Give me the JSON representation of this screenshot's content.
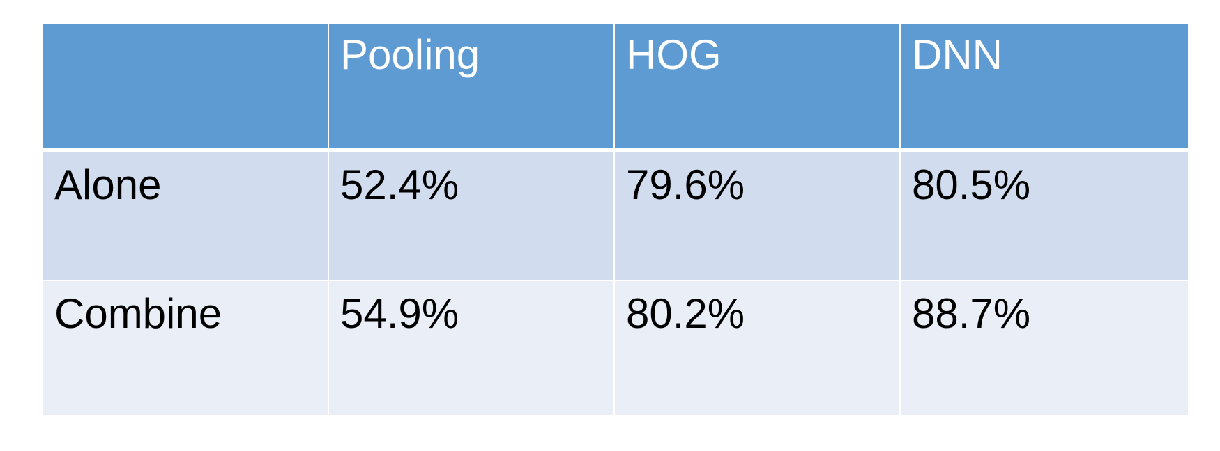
{
  "table": {
    "columns": [
      "",
      "Pooling",
      "HOG",
      "DNN"
    ],
    "rows": [
      {
        "label": "Alone",
        "values": [
          "52.4%",
          "79.6%",
          "80.5%"
        ]
      },
      {
        "label": "Combine",
        "values": [
          "54.9%",
          "80.2%",
          "88.7%"
        ]
      }
    ]
  },
  "colors": {
    "header_bg": "#5f9bd3",
    "row_odd_bg": "#d1ddee",
    "row_even_bg": "#e9eef7",
    "header_text": "#ffffff",
    "body_text": "#000000"
  }
}
